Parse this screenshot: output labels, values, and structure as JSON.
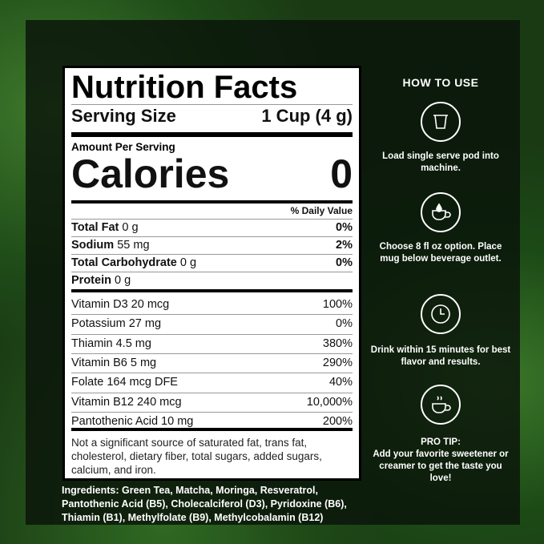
{
  "label": {
    "title": "Nutrition Facts",
    "serving_size_label": "Serving Size",
    "serving_size_value": "1 Cup (4 g)",
    "amount_per_serving": "Amount Per Serving",
    "calories_label": "Calories",
    "calories_value": "0",
    "daily_value_header": "% Daily Value",
    "macros": [
      {
        "name": "Total Fat",
        "amount": "0 g",
        "dv": "0%"
      },
      {
        "name": "Sodium",
        "amount": "55 mg",
        "dv": "2%"
      },
      {
        "name": "Total Carbohydrate",
        "amount": "0 g",
        "dv": "0%"
      },
      {
        "name": "Protein",
        "amount": "0 g",
        "dv": ""
      }
    ],
    "vitamins": [
      {
        "name": "Vitamin D3 20 mcg",
        "dv": "100%"
      },
      {
        "name": "Potassium 27 mg",
        "dv": "0%"
      },
      {
        "name": "Thiamin 4.5 mg",
        "dv": "380%"
      },
      {
        "name": "Vitamin B6 5 mg",
        "dv": "290%"
      },
      {
        "name": "Folate 164 mcg DFE",
        "dv": "40%"
      },
      {
        "name": "Vitamin B12 240 mcg",
        "dv": "10,000%"
      },
      {
        "name": "Pantothenic Acid 10 mg",
        "dv": "200%"
      }
    ],
    "footnote": "Not a significant source of saturated fat, trans fat, cholesterol, dietary fiber, total sugars, added sugars, calcium, and iron."
  },
  "ingredients": "Ingredients: Green Tea, Matcha, Moringa, Resveratrol, Pantothenic Acid (B5), Cholecalciferol (D3), Pyridoxine (B6), Thiamin (B1), Methylfolate (B9), Methylcobalamin (B12)",
  "how_to_use": {
    "title": "HOW TO USE",
    "steps": [
      {
        "icon": "pod-icon",
        "text": "Load single serve pod into machine."
      },
      {
        "icon": "mug-drop-icon",
        "text": "Choose 8 fl oz option. Place mug below beverage outlet."
      },
      {
        "icon": "clock-icon",
        "text": "Drink within 15 minutes for best flavor and results."
      },
      {
        "icon": "steaming-cup-icon",
        "title": "PRO TIP:",
        "text": "Add your favorite sweetener or creamer to get the taste you love!"
      }
    ]
  }
}
